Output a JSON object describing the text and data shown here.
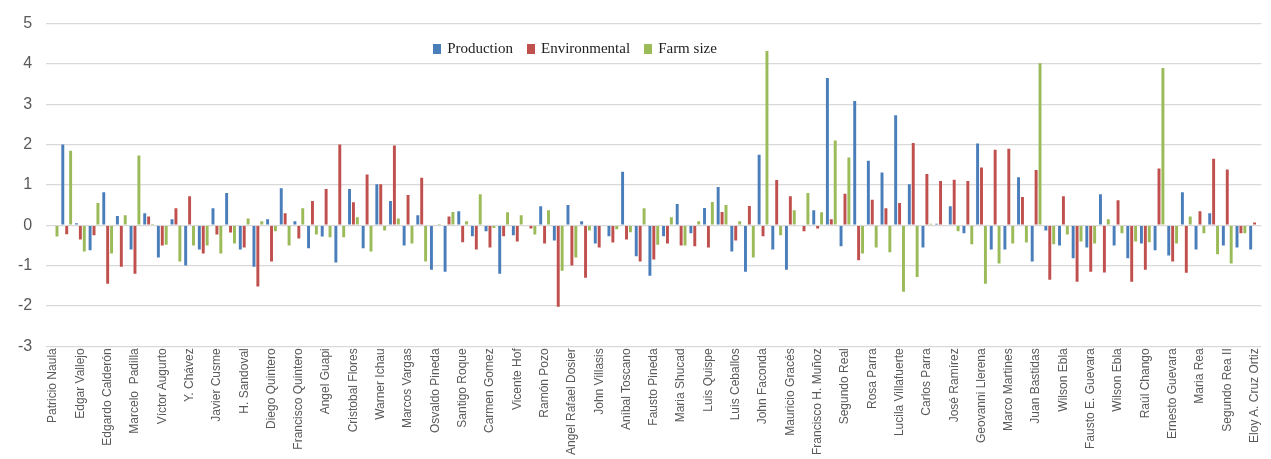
{
  "chart_data": {
    "type": "bar",
    "categories": [
      "Patricio Naula",
      null,
      "Edgar Vallejo",
      null,
      "Edgardo Calderón",
      null,
      "Marcelo  Padilla",
      null,
      "Víctor Augurto",
      null,
      "Y. Chávez",
      null,
      "Javier Cusme",
      null,
      "H. Sandoval",
      null,
      "Diego Quintero",
      null,
      "Francisco Quintero",
      null,
      "Angel Guapi",
      null,
      "Cristobal Flores",
      null,
      "Warner Ichau",
      null,
      "Marcos Vargas",
      null,
      "Osvaldo Pineda",
      null,
      "Santigo Roque",
      null,
      "Carmen Gomez",
      null,
      "Vicente Hof",
      null,
      "Ramón Pozo",
      null,
      "Angel Rafael Dosier",
      null,
      "John Villasis",
      null,
      "Aníbal Toscano",
      null,
      "Fausto Pineda",
      null,
      "Maria Shucad",
      null,
      "Luis Quispe",
      null,
      "Luis Ceballos",
      null,
      "John Faconda",
      null,
      "Mauricio Gracés",
      null,
      "Francisco H. Muñoz",
      null,
      "Segundo Real",
      null,
      "Rosa Parra",
      null,
      "Lucila Villafuerte",
      null,
      "Carlos Parra",
      null,
      "José Ramírez",
      null,
      "Geovanni Llerena",
      null,
      "Marco Martines",
      null,
      "Juan Bastidas",
      null,
      "Wilson Ebla",
      null,
      "Fausto E. Guevara",
      null,
      "Wilson Ebla",
      null,
      "Raúl Chango",
      null,
      "Ernesto Guevara",
      null,
      "Maria Rea",
      null,
      "Segundo Rea II",
      null,
      "Eloy A. Cruz Ortiz"
    ],
    "series": [
      {
        "name": "Production",
        "color": "#4a7ebb",
        "values": [
          0,
          2.0,
          0.05,
          -0.62,
          0.82,
          0.23,
          -0.6,
          0.3,
          -0.8,
          0.15,
          -1.0,
          -0.6,
          0.42,
          0.8,
          -0.6,
          -1.03,
          0.15,
          0.92,
          0.1,
          -0.57,
          -0.28,
          -0.92,
          0.9,
          -0.57,
          1.02,
          0.6,
          -0.5,
          0.25,
          -1.1,
          -1.15,
          0.35,
          -0.27,
          -0.15,
          -1.2,
          -0.25,
          0,
          0.47,
          -0.38,
          0.5,
          0.1,
          -0.45,
          -0.27,
          1.33,
          -0.77,
          -1.25,
          -0.27,
          0.53,
          -0.2,
          0.43,
          0.95,
          -0.65,
          -1.15,
          1.75,
          -0.6,
          -1.1,
          0,
          0.37,
          3.65,
          -0.52,
          3.08,
          1.6,
          1.31,
          2.73,
          1.02,
          -0.55,
          0.04,
          0.47,
          -0.2,
          2.03,
          -0.6,
          -0.6,
          1.19,
          -0.9,
          -0.13,
          -0.5,
          -0.82,
          -0.55,
          0.77,
          -0.5,
          -0.82,
          -0.45,
          -0.62,
          -0.75,
          0.82,
          -0.6,
          0.3,
          -0.5,
          -0.55,
          -0.6
        ]
      },
      {
        "name": "Environmental",
        "color": "#c0504d",
        "values": [
          0,
          -0.22,
          -0.35,
          -0.25,
          -1.45,
          -1.03,
          -1.2,
          0.22,
          -0.5,
          0.42,
          0.72,
          -0.7,
          -0.23,
          -0.18,
          -0.55,
          -1.52,
          -0.9,
          0.3,
          -0.33,
          0.6,
          0.9,
          2.0,
          0.57,
          1.26,
          1.02,
          1.98,
          0.75,
          1.18,
          0,
          0.22,
          -0.42,
          -0.6,
          -0.55,
          -0.27,
          -0.4,
          -0.08,
          -0.45,
          -2.02,
          -1.0,
          -1.3,
          -0.55,
          -0.43,
          -0.35,
          -0.9,
          -0.85,
          -0.45,
          -0.5,
          -0.52,
          -0.55,
          0.33,
          -0.38,
          0.48,
          -0.27,
          1.12,
          0.72,
          -0.15,
          -0.08,
          0.15,
          0.78,
          -0.87,
          0.63,
          0.42,
          0.55,
          2.04,
          1.27,
          1.1,
          1.13,
          1.1,
          1.43,
          1.87,
          1.9,
          0.7,
          1.37,
          -1.35,
          0.72,
          -1.4,
          -1.15,
          -1.17,
          0.62,
          -1.4,
          -1.1,
          1.41,
          -0.9,
          -1.18,
          0.35,
          1.65,
          1.38,
          -0.2,
          0.07
        ]
      },
      {
        "name": "Farm size",
        "color": "#9bbb59",
        "values": [
          -0.28,
          1.85,
          -0.65,
          0.55,
          -0.7,
          0.25,
          1.73,
          0.03,
          -0.48,
          -0.9,
          -0.5,
          -0.5,
          -0.7,
          -0.45,
          0.17,
          0.1,
          -0.15,
          -0.5,
          0.42,
          -0.23,
          -0.3,
          -0.3,
          0.2,
          -0.65,
          -0.13,
          0.17,
          -0.45,
          -0.9,
          0.03,
          0.33,
          0.1,
          0.77,
          -0.07,
          0.32,
          0.25,
          -0.23,
          0.37,
          -1.13,
          -0.8,
          -0.13,
          0,
          -0.1,
          -0.17,
          0.42,
          -0.48,
          0.2,
          -0.5,
          0.1,
          0.58,
          0.5,
          0.1,
          -0.8,
          4.32,
          -0.25,
          0.37,
          0.8,
          0.32,
          2.1,
          1.68,
          -0.7,
          -0.55,
          -0.67,
          -1.65,
          -1.28,
          0.04,
          0,
          -0.15,
          -0.47,
          -1.45,
          -0.95,
          -0.45,
          -0.43,
          4.02,
          -0.47,
          -0.23,
          -0.4,
          -0.45,
          0.15,
          -0.2,
          -0.4,
          -0.42,
          3.9,
          -0.45,
          0.22,
          -0.2,
          -0.72,
          -0.95,
          -0.2,
          null
        ]
      }
    ],
    "ylim": [
      -3,
      5
    ],
    "yticks": [
      -3,
      -2,
      -1,
      0,
      1,
      2,
      3,
      4,
      5
    ],
    "grid": "y",
    "legend": "top"
  }
}
